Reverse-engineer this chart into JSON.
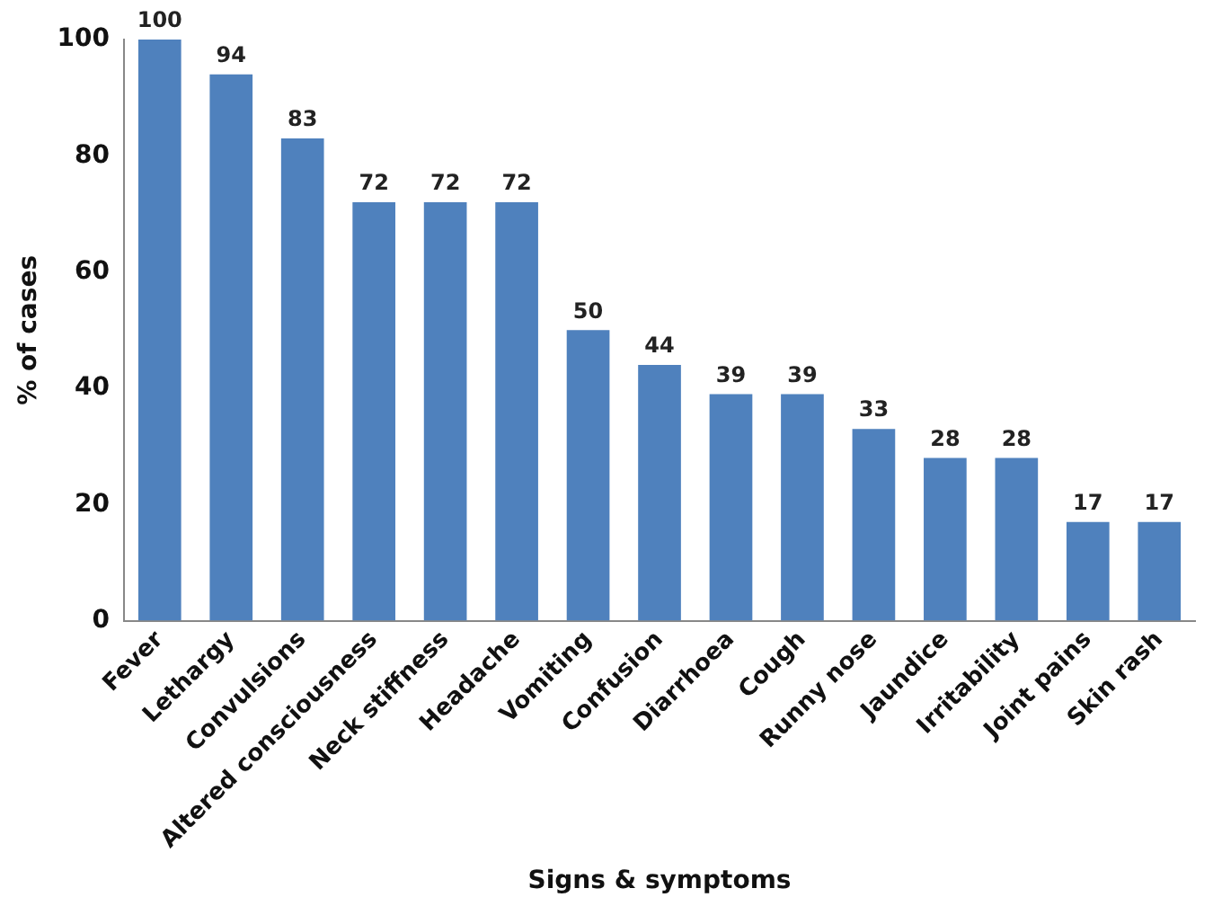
{
  "chart_data": {
    "type": "bar",
    "xlabel": "Signs & symptoms",
    "ylabel": "% of cases",
    "categories": [
      "Fever",
      "Lethargy",
      "Convulsions",
      "Altered consciousness",
      "Neck stiffness",
      "Headache",
      "Vomiting",
      "Confusion",
      "Diarrhoea",
      "Cough",
      "Runny nose",
      "Jaundice",
      "Irritability",
      "Joint pains",
      "Skin rash"
    ],
    "values": [
      100,
      94,
      83,
      72,
      72,
      72,
      50,
      44,
      39,
      39,
      33,
      28,
      28,
      17,
      17
    ],
    "color": "#4f81bd",
    "ylim": [
      0,
      100
    ],
    "yticks": [
      0,
      20,
      40,
      60,
      80,
      100
    ],
    "grid": false,
    "legend": false,
    "data_labels": true
  }
}
